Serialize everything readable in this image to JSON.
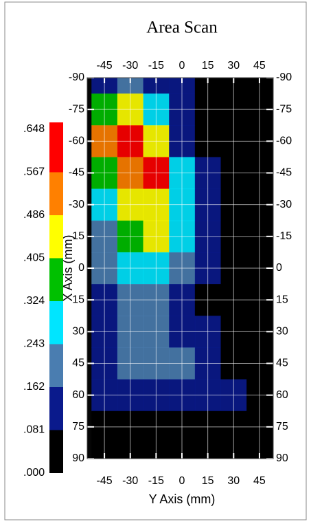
{
  "chart_data": {
    "type": "heatmap",
    "title": "Area Scan",
    "x_label": "Y Axis (mm)",
    "y_label": "X Axis (mm)",
    "x": [
      -45,
      -30,
      -15,
      0,
      15,
      30,
      45
    ],
    "y": [
      -90,
      -75,
      -60,
      -45,
      -30,
      -15,
      0,
      15,
      30,
      45,
      60,
      75,
      90
    ],
    "values": [
      [
        0.15,
        0.17,
        0.14,
        0.09,
        0.05,
        0.03,
        0.02
      ],
      [
        0.35,
        0.45,
        0.3,
        0.12,
        0.05,
        0.03,
        0.02
      ],
      [
        0.52,
        0.6,
        0.42,
        0.15,
        0.06,
        0.04,
        0.03
      ],
      [
        0.38,
        0.5,
        0.58,
        0.28,
        0.1,
        0.05,
        0.03
      ],
      [
        0.3,
        0.45,
        0.48,
        0.3,
        0.14,
        0.06,
        0.03
      ],
      [
        0.22,
        0.38,
        0.42,
        0.28,
        0.16,
        0.08,
        0.03
      ],
      [
        0.17,
        0.26,
        0.3,
        0.2,
        0.14,
        0.06,
        0.03
      ],
      [
        0.14,
        0.2,
        0.24,
        0.14,
        0.08,
        0.04,
        0.02
      ],
      [
        0.13,
        0.18,
        0.2,
        0.16,
        0.12,
        0.05,
        0.02
      ],
      [
        0.12,
        0.17,
        0.2,
        0.18,
        0.14,
        0.08,
        0.03
      ],
      [
        0.1,
        0.13,
        0.15,
        0.14,
        0.12,
        0.09,
        0.03
      ],
      [
        0.05,
        0.07,
        0.06,
        0.05,
        0.05,
        0.04,
        0.02
      ],
      [
        0.02,
        0.02,
        0.02,
        0.02,
        0.02,
        0.02,
        0.02
      ]
    ],
    "xlim": [
      -55,
      53
    ],
    "ylim": [
      -90,
      90
    ],
    "xticks": [
      -45,
      -30,
      -15,
      0,
      15,
      30,
      45
    ],
    "yticks": [
      -90,
      -75,
      -60,
      -45,
      -30,
      -15,
      0,
      15,
      30,
      45,
      60,
      75,
      90
    ],
    "grid": true,
    "colorbar": {
      "ticks": [
        {
          "value": 0,
          "label": ".000"
        },
        {
          "value": 0.081,
          "label": ".081"
        },
        {
          "value": 0.162,
          "label": ".162"
        },
        {
          "value": 0.243,
          "label": ".243"
        },
        {
          "value": 0.324,
          "label": ".324"
        },
        {
          "value": 0.405,
          "label": ".405"
        },
        {
          "value": 0.486,
          "label": ".486"
        },
        {
          "value": 0.567,
          "label": ".567"
        },
        {
          "value": 0.648,
          "label": ".648"
        }
      ],
      "colors": [
        "#000000",
        "#0a1a8c",
        "#4a7db0",
        "#00e5ff",
        "#00c000",
        "#ffff00",
        "#ff8000",
        "#ff0000"
      ]
    }
  }
}
